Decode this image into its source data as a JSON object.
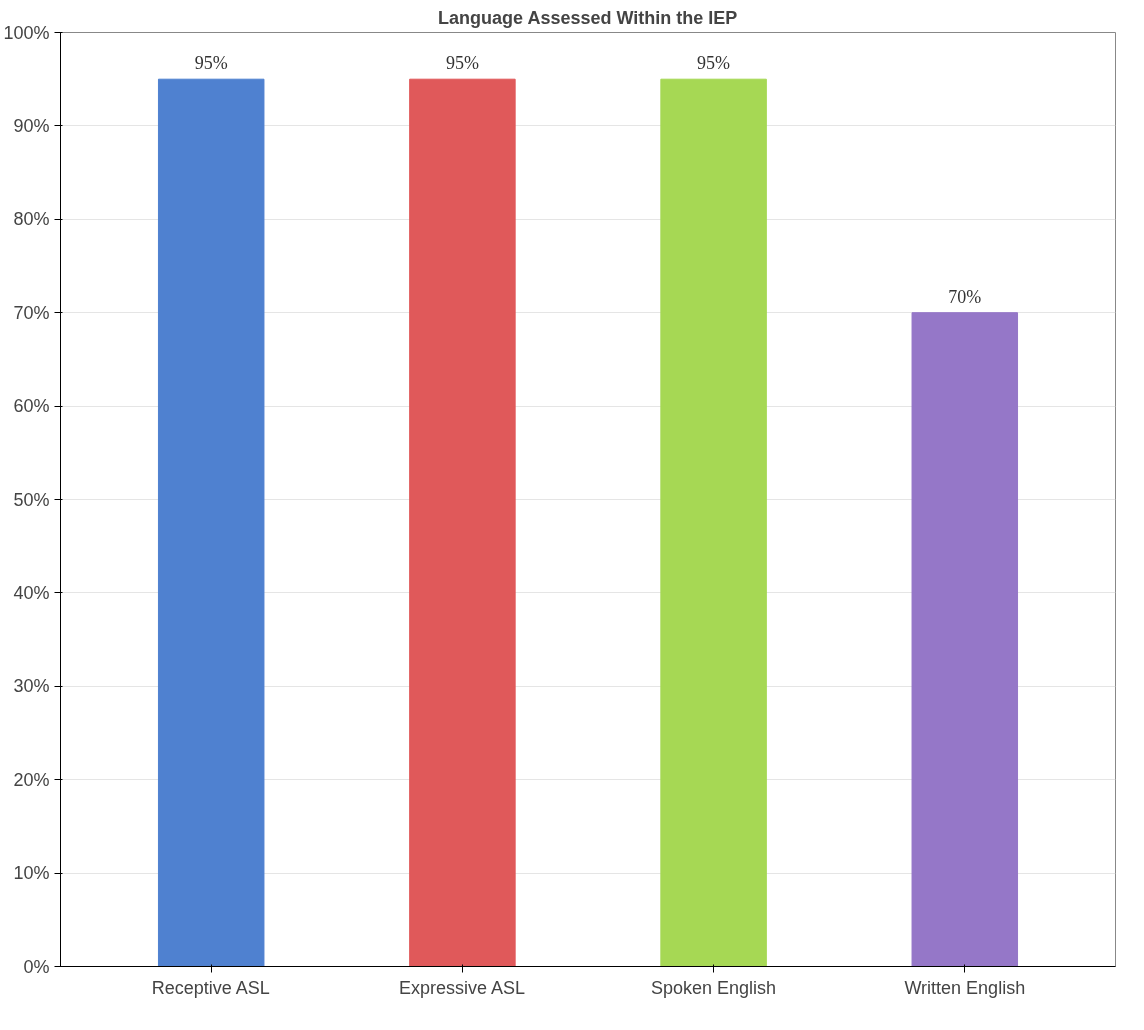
{
  "chart_data": {
    "type": "bar",
    "title": "Language Assessed Within the IEP",
    "categories": [
      "Receptive ASL",
      "Expressive ASL",
      "Spoken English",
      "Written English"
    ],
    "values": [
      95,
      95,
      95,
      70
    ],
    "colors": [
      "#4f81d0",
      "#e0595a",
      "#a6d854",
      "#9577c8"
    ],
    "ylim": [
      0,
      100
    ],
    "yticks": [
      {
        "value": 0,
        "label": "0%"
      },
      {
        "value": 10,
        "label": "10%"
      },
      {
        "value": 20,
        "label": "20%"
      },
      {
        "value": 30,
        "label": "30%"
      },
      {
        "value": 40,
        "label": "40%"
      },
      {
        "value": 50,
        "label": "50%"
      },
      {
        "value": 60,
        "label": "60%"
      },
      {
        "value": 70,
        "label": "70%"
      },
      {
        "value": 80,
        "label": "80%"
      },
      {
        "value": 90,
        "label": "90%"
      },
      {
        "value": 100,
        "label": "100%"
      }
    ],
    "value_labels": [
      "95%",
      "95%",
      "95%",
      "70%"
    ],
    "grid": "y"
  }
}
